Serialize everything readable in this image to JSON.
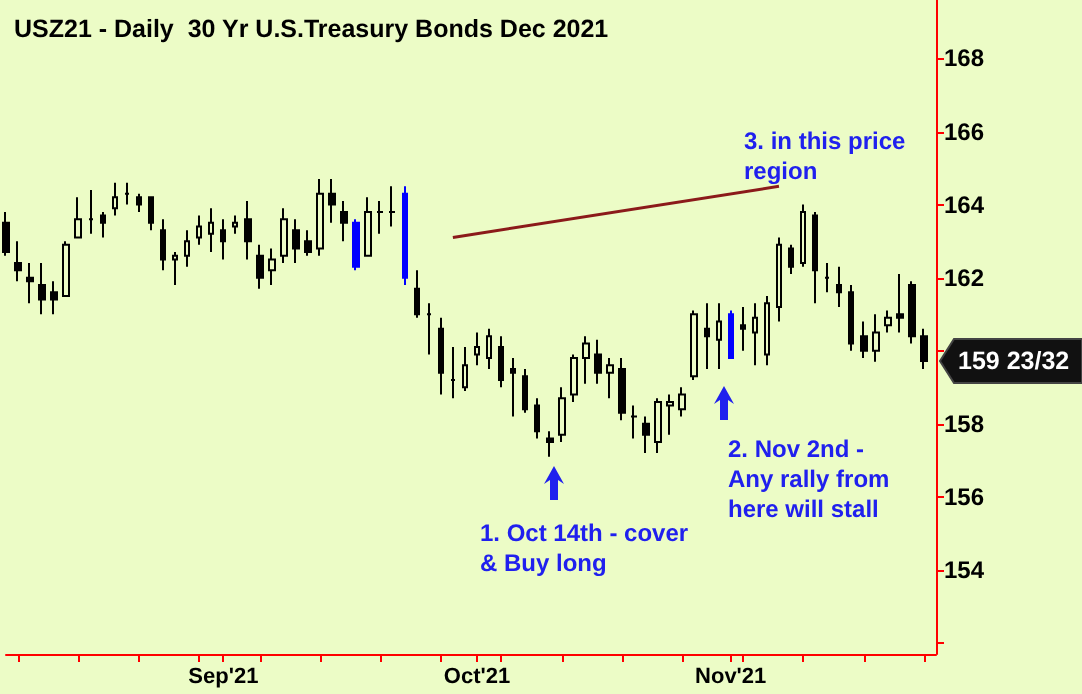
{
  "chart_data": {
    "type": "candlestick",
    "title": "USZ21 - Daily  30 Yr U.S.Treasury Bonds Dec 2021",
    "categories": [
      null,
      null,
      null,
      null,
      null,
      null,
      null,
      null,
      null,
      null,
      null,
      null,
      null,
      null,
      null,
      null,
      null,
      null,
      "Sep'21",
      null,
      null,
      null,
      null,
      null,
      null,
      null,
      null,
      null,
      null,
      null,
      null,
      null,
      null,
      null,
      null,
      null,
      null,
      null,
      null,
      "Oct'21",
      null,
      null,
      null,
      null,
      null,
      null,
      null,
      null,
      null,
      null,
      null,
      null,
      null,
      null,
      null,
      null,
      null,
      null,
      null,
      null,
      "Nov'21",
      null,
      null,
      null,
      null,
      null,
      null,
      null,
      null,
      null,
      null,
      null,
      null,
      null,
      null,
      null,
      null
    ],
    "ohlc": [
      [
        163.5,
        163.8,
        162.6,
        162.7
      ],
      [
        162.4,
        163.0,
        161.9,
        162.2
      ],
      [
        162.0,
        162.4,
        161.3,
        161.9
      ],
      [
        161.8,
        162.4,
        161.0,
        161.4
      ],
      [
        161.6,
        161.9,
        161.0,
        161.4
      ],
      [
        161.5,
        163.0,
        161.5,
        162.9
      ],
      [
        163.1,
        164.2,
        163.1,
        163.6
      ],
      [
        163.6,
        164.4,
        163.2,
        163.6
      ],
      [
        163.7,
        163.8,
        163.1,
        163.5
      ],
      [
        163.9,
        164.6,
        163.7,
        164.2
      ],
      [
        164.3,
        164.6,
        164.0,
        164.3
      ],
      [
        164.2,
        164.3,
        163.8,
        164.0
      ],
      [
        164.2,
        164.2,
        163.3,
        163.5
      ],
      [
        163.3,
        163.6,
        162.2,
        162.5
      ],
      [
        162.5,
        162.7,
        161.8,
        162.6
      ],
      [
        162.6,
        163.3,
        162.3,
        163.0
      ],
      [
        163.1,
        163.7,
        162.9,
        163.4
      ],
      [
        163.2,
        163.9,
        162.7,
        163.5
      ],
      [
        163.3,
        163.6,
        162.5,
        163.0
      ],
      [
        163.4,
        163.7,
        163.2,
        163.5
      ],
      [
        163.6,
        164.1,
        162.5,
        163.0
      ],
      [
        162.6,
        162.9,
        161.7,
        162.0
      ],
      [
        162.2,
        162.8,
        161.8,
        162.5
      ],
      [
        162.6,
        163.9,
        162.4,
        163.6
      ],
      [
        163.3,
        163.6,
        162.4,
        162.8
      ],
      [
        163.0,
        163.3,
        162.6,
        162.7
      ],
      [
        162.8,
        164.7,
        162.6,
        164.3
      ],
      [
        164.3,
        164.7,
        163.5,
        164.0
      ],
      [
        163.8,
        164.1,
        163.0,
        163.5
      ],
      [
        163.5,
        163.6,
        162.2,
        162.3
      ],
      [
        162.6,
        164.2,
        162.6,
        163.8
      ],
      [
        163.8,
        164.1,
        163.2,
        163.8
      ],
      [
        163.8,
        164.5,
        163.4,
        163.8
      ],
      [
        164.3,
        164.5,
        161.8,
        162.0
      ],
      [
        161.7,
        162.2,
        160.9,
        161.0
      ],
      [
        161.0,
        161.3,
        159.9,
        161.0
      ],
      [
        160.6,
        160.9,
        158.8,
        159.4
      ],
      [
        159.2,
        160.1,
        158.7,
        159.2
      ],
      [
        159.0,
        160.1,
        158.9,
        159.6
      ],
      [
        159.9,
        160.5,
        159.6,
        160.1
      ],
      [
        159.8,
        160.6,
        159.5,
        160.4
      ],
      [
        160.1,
        160.4,
        159.0,
        159.2
      ],
      [
        159.5,
        159.8,
        158.2,
        159.4
      ],
      [
        159.3,
        159.5,
        158.3,
        158.4
      ],
      [
        158.5,
        158.7,
        157.6,
        157.8
      ],
      [
        157.6,
        157.8,
        157.1,
        157.5
      ],
      [
        157.7,
        159.0,
        157.5,
        158.7
      ],
      [
        158.8,
        159.9,
        158.6,
        159.8
      ],
      [
        159.8,
        160.4,
        159.1,
        160.2
      ],
      [
        159.9,
        160.3,
        159.1,
        159.4
      ],
      [
        159.4,
        159.8,
        158.7,
        159.6
      ],
      [
        159.5,
        159.8,
        158.1,
        158.3
      ],
      [
        158.2,
        158.5,
        157.6,
        158.2
      ],
      [
        158.0,
        158.2,
        157.2,
        157.7
      ],
      [
        157.5,
        158.7,
        157.2,
        158.6
      ],
      [
        158.5,
        158.8,
        157.7,
        158.6
      ],
      [
        158.4,
        159.0,
        158.2,
        158.8
      ],
      [
        159.3,
        161.1,
        159.2,
        161.0
      ],
      [
        160.6,
        161.3,
        159.5,
        160.4
      ],
      [
        160.3,
        161.3,
        159.5,
        160.8
      ],
      [
        161.0,
        161.1,
        159.8,
        159.8
      ],
      [
        160.7,
        161.2,
        160.0,
        160.6
      ],
      [
        160.5,
        161.3,
        159.6,
        160.9
      ],
      [
        159.9,
        161.5,
        159.6,
        161.3
      ],
      [
        161.2,
        163.1,
        160.8,
        162.9
      ],
      [
        162.8,
        162.9,
        162.1,
        162.3
      ],
      [
        162.4,
        164.0,
        162.3,
        163.8
      ],
      [
        163.7,
        163.8,
        161.3,
        162.2
      ],
      [
        162.0,
        162.4,
        161.6,
        162.0
      ],
      [
        161.8,
        162.3,
        161.2,
        161.6
      ],
      [
        161.6,
        161.8,
        160.0,
        160.2
      ],
      [
        160.4,
        160.8,
        159.8,
        160.0
      ],
      [
        160.0,
        161.0,
        159.7,
        160.5
      ],
      [
        160.7,
        161.1,
        160.5,
        160.9
      ],
      [
        161.0,
        162.1,
        160.5,
        160.9
      ],
      [
        161.8,
        161.9,
        160.2,
        160.4
      ],
      [
        160.4,
        160.6,
        159.5,
        159.72
      ]
    ],
    "colors": [
      "#000000",
      "#000000",
      "#000000",
      "#000000",
      "#000000",
      "#000000",
      "#000000",
      "#000000",
      "#000000",
      "#000000",
      "#000000",
      "#000000",
      "#000000",
      "#000000",
      "#000000",
      "#000000",
      "#000000",
      "#000000",
      "#000000",
      "#000000",
      "#000000",
      "#000000",
      "#000000",
      "#000000",
      "#000000",
      "#000000",
      "#000000",
      "#000000",
      "#000000",
      "#0000ff",
      "#000000",
      "#000000",
      "#000000",
      "#0000ff",
      "#000000",
      "#000000",
      "#000000",
      "#000000",
      "#000000",
      "#000000",
      "#000000",
      "#000000",
      "#000000",
      "#000000",
      "#000000",
      "#000000",
      "#000000",
      "#000000",
      "#000000",
      "#000000",
      "#000000",
      "#000000",
      "#000000",
      "#000000",
      "#000000",
      "#000000",
      "#000000",
      "#000000",
      "#000000",
      "#000000",
      "#0000ff",
      "#000000",
      "#000000",
      "#000000",
      "#000000",
      "#000000",
      "#000000",
      "#000000",
      "#000000",
      "#000000",
      "#000000",
      "#000000",
      "#000000",
      "#000000",
      "#000000",
      "#000000",
      "#000000"
    ],
    "series": [
      {
        "type": "line",
        "color": "#8b1a1a",
        "values": [
          null,
          null,
          null,
          null,
          null,
          null,
          null,
          null,
          null,
          null,
          null,
          null,
          null,
          null,
          null,
          null,
          null,
          null,
          null,
          null,
          null,
          null,
          null,
          null,
          null,
          null,
          null,
          null,
          null,
          null,
          null,
          null,
          null,
          null,
          null,
          null,
          null,
          163.1,
          null,
          null,
          null,
          null,
          null,
          null,
          null,
          null,
          null,
          null,
          null,
          null,
          null,
          null,
          null,
          null,
          null,
          null,
          null,
          null,
          null,
          null,
          null,
          null,
          null,
          null,
          164.5,
          null,
          null,
          null,
          null,
          null,
          null,
          null,
          null,
          null,
          null,
          null,
          null
        ]
      }
    ],
    "ylim": [
      151.7,
      169.6
    ],
    "yticks": [
      {
        "value": 152,
        "label": null
      },
      154,
      156,
      158,
      {
        "value": 160,
        "label": null
      },
      162,
      164,
      166,
      168
    ],
    "annotations": [
      "1. Oct 14th - cover\n& Buy long",
      "2. Nov 2nd -\nAny rally from\nhere will stall",
      "3. in this price\nregion",
      "159 23/32"
    ],
    "grid": false
  }
}
